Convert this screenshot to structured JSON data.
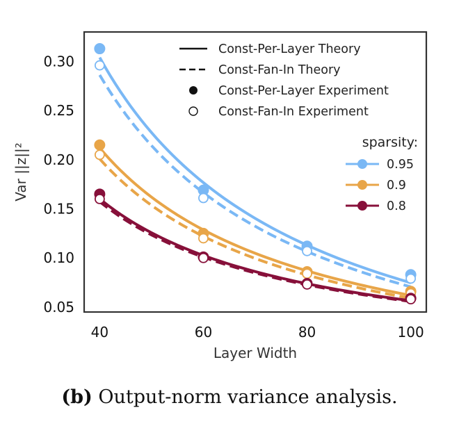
{
  "caption": {
    "prefix": "(b)",
    "text": "Output-norm variance analysis."
  },
  "colors": {
    "s095": "#7ab8f5",
    "s09": "#e8a548",
    "s08": "#87103a",
    "axis": "#333333"
  },
  "chart_data": {
    "type": "line",
    "xlabel": "Layer Width",
    "ylabel": "Var ||z||²",
    "xlim": [
      37,
      103
    ],
    "ylim": [
      0.045,
      0.33
    ],
    "xticks": [
      40,
      60,
      80,
      100
    ],
    "yticks": [
      0.05,
      0.1,
      0.15,
      0.2,
      0.25,
      0.3
    ],
    "ytick_labels": [
      "0.05",
      "0.10",
      "0.15",
      "0.20",
      "0.25",
      "0.30"
    ],
    "grid": false,
    "legend_position": "top-right",
    "legend_style": [
      {
        "label": "Const-Per-Layer Theory",
        "kind": "solid-line"
      },
      {
        "label": "Const-Fan-In Theory",
        "kind": "dashed-line"
      },
      {
        "label": "Const-Per-Layer Experiment",
        "kind": "filled-marker"
      },
      {
        "label": "Const-Fan-In Experiment",
        "kind": "open-marker"
      }
    ],
    "legend_title": "sparsity:",
    "series": [
      {
        "name": "0.95",
        "color": "#7ab8f5",
        "theory_per_layer": [
          [
            40,
            0.313
          ],
          [
            50,
            0.222
          ],
          [
            60,
            0.168
          ],
          [
            70,
            0.135
          ],
          [
            80,
            0.112
          ],
          [
            90,
            0.095
          ],
          [
            100,
            0.083
          ]
        ],
        "theory_fan_in": [
          [
            40,
            0.295
          ],
          [
            50,
            0.207
          ],
          [
            60,
            0.16
          ],
          [
            70,
            0.128
          ],
          [
            80,
            0.106
          ],
          [
            90,
            0.09
          ],
          [
            100,
            0.077
          ]
        ],
        "exp_per_layer": [
          [
            40,
            0.313
          ],
          [
            60,
            0.169
          ],
          [
            80,
            0.112
          ],
          [
            100,
            0.083
          ]
        ],
        "exp_fan_in": [
          [
            40,
            0.296
          ],
          [
            60,
            0.161
          ],
          [
            80,
            0.107
          ],
          [
            100,
            0.079
          ]
        ]
      },
      {
        "name": "0.9",
        "color": "#e8a548",
        "theory_per_layer": [
          [
            40,
            0.215
          ],
          [
            50,
            0.161
          ],
          [
            60,
            0.125
          ],
          [
            70,
            0.102
          ],
          [
            80,
            0.086
          ],
          [
            90,
            0.074
          ],
          [
            100,
            0.066
          ]
        ],
        "theory_fan_in": [
          [
            40,
            0.205
          ],
          [
            50,
            0.151
          ],
          [
            60,
            0.118
          ],
          [
            70,
            0.097
          ],
          [
            80,
            0.082
          ],
          [
            90,
            0.071
          ],
          [
            100,
            0.063
          ]
        ],
        "exp_per_layer": [
          [
            40,
            0.215
          ],
          [
            60,
            0.125
          ],
          [
            80,
            0.086
          ],
          [
            100,
            0.066
          ]
        ],
        "exp_fan_in": [
          [
            40,
            0.205
          ],
          [
            60,
            0.12
          ],
          [
            80,
            0.084
          ],
          [
            100,
            0.064
          ]
        ]
      },
      {
        "name": "0.8",
        "color": "#87103a",
        "theory_per_layer": [
          [
            40,
            0.163
          ],
          [
            50,
            0.123
          ],
          [
            60,
            0.101
          ],
          [
            70,
            0.085
          ],
          [
            80,
            0.073
          ],
          [
            90,
            0.065
          ],
          [
            100,
            0.059
          ]
        ],
        "theory_fan_in": [
          [
            40,
            0.16
          ],
          [
            50,
            0.121
          ],
          [
            60,
            0.099
          ],
          [
            70,
            0.084
          ],
          [
            80,
            0.072
          ],
          [
            90,
            0.064
          ],
          [
            100,
            0.058
          ]
        ],
        "exp_per_layer": [
          [
            40,
            0.165
          ],
          [
            60,
            0.101
          ],
          [
            80,
            0.074
          ],
          [
            100,
            0.059
          ]
        ],
        "exp_fan_in": [
          [
            40,
            0.16
          ],
          [
            60,
            0.1
          ],
          [
            80,
            0.073
          ],
          [
            100,
            0.058
          ]
        ]
      }
    ]
  }
}
